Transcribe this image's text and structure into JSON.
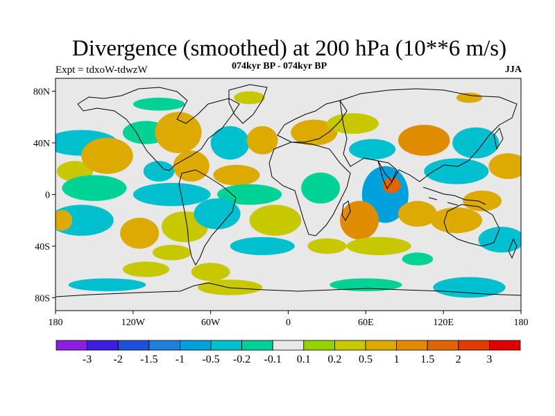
{
  "title": "Divergence (smoothed) at 200 hPa (10**6 m/s)",
  "experiment": "Expt = tdxoW-tdwzW",
  "period": "074kyr BP - 074kyr BP",
  "season": "JJA",
  "map": {
    "projection": "cylindrical-equidistant",
    "lon_range": [
      -180,
      180
    ],
    "lat_range": [
      -90,
      90
    ],
    "background_color": "#e8e8e8",
    "lat_ticks": [
      {
        "value": 80,
        "label": "80N"
      },
      {
        "value": 40,
        "label": "40N"
      },
      {
        "value": 0,
        "label": "0"
      },
      {
        "value": -40,
        "label": "40S"
      },
      {
        "value": -80,
        "label": "80S"
      }
    ],
    "lon_ticks": [
      {
        "value": -180,
        "label": "180"
      },
      {
        "value": -120,
        "label": "120W"
      },
      {
        "value": -60,
        "label": "60W"
      },
      {
        "value": 0,
        "label": "0"
      },
      {
        "value": 60,
        "label": "60E"
      },
      {
        "value": 120,
        "label": "120E"
      },
      {
        "value": 180,
        "label": "180"
      }
    ],
    "blobs": [
      {
        "lon": -160,
        "lat": 40,
        "rx": 28,
        "ry": 10,
        "value": -0.5
      },
      {
        "lon": -165,
        "lat": 18,
        "rx": 14,
        "ry": 8,
        "value": 0.2
      },
      {
        "lon": -140,
        "lat": 30,
        "rx": 20,
        "ry": 14,
        "value": 0.5
      },
      {
        "lon": -150,
        "lat": 5,
        "rx": 25,
        "ry": 10,
        "value": -0.2
      },
      {
        "lon": -110,
        "lat": 48,
        "rx": 18,
        "ry": 9,
        "value": -0.2
      },
      {
        "lon": -85,
        "lat": 48,
        "rx": 18,
        "ry": 16,
        "value": 0.5
      },
      {
        "lon": -75,
        "lat": 22,
        "rx": 14,
        "ry": 12,
        "value": 0.5
      },
      {
        "lon": -100,
        "lat": 18,
        "rx": 12,
        "ry": 8,
        "value": -0.5
      },
      {
        "lon": -90,
        "lat": 0,
        "rx": 30,
        "ry": 9,
        "value": -0.5
      },
      {
        "lon": -45,
        "lat": 40,
        "rx": 15,
        "ry": 13,
        "value": -0.5
      },
      {
        "lon": -20,
        "lat": 42,
        "rx": 12,
        "ry": 11,
        "value": 0.5
      },
      {
        "lon": -40,
        "lat": 15,
        "rx": 18,
        "ry": 8,
        "value": 0.5
      },
      {
        "lon": -30,
        "lat": 0,
        "rx": 25,
        "ry": 8,
        "value": -0.2
      },
      {
        "lon": -160,
        "lat": -20,
        "rx": 25,
        "ry": 12,
        "value": -0.5
      },
      {
        "lon": -175,
        "lat": -20,
        "rx": 8,
        "ry": 8,
        "value": 0.5
      },
      {
        "lon": -115,
        "lat": -30,
        "rx": 15,
        "ry": 12,
        "value": 0.5
      },
      {
        "lon": -80,
        "lat": -25,
        "rx": 18,
        "ry": 12,
        "value": 0.2
      },
      {
        "lon": -90,
        "lat": -45,
        "rx": 15,
        "ry": 6,
        "value": 0.2
      },
      {
        "lon": -55,
        "lat": -15,
        "rx": 18,
        "ry": 12,
        "value": -0.5
      },
      {
        "lon": -10,
        "lat": -20,
        "rx": 20,
        "ry": 12,
        "value": 0.2
      },
      {
        "lon": -20,
        "lat": -40,
        "rx": 25,
        "ry": 7,
        "value": -0.5
      },
      {
        "lon": -60,
        "lat": -60,
        "rx": 15,
        "ry": 7,
        "value": 0.2
      },
      {
        "lon": -110,
        "lat": -58,
        "rx": 18,
        "ry": 6,
        "value": 0.2
      },
      {
        "lon": 20,
        "lat": 48,
        "rx": 18,
        "ry": 10,
        "value": 0.5
      },
      {
        "lon": 50,
        "lat": 55,
        "rx": 20,
        "ry": 8,
        "value": 0.2
      },
      {
        "lon": 65,
        "lat": 35,
        "rx": 18,
        "ry": 8,
        "value": -0.5
      },
      {
        "lon": 105,
        "lat": 42,
        "rx": 20,
        "ry": 12,
        "value": 1
      },
      {
        "lon": 145,
        "lat": 40,
        "rx": 18,
        "ry": 12,
        "value": -0.5
      },
      {
        "lon": 170,
        "lat": 22,
        "rx": 15,
        "ry": 10,
        "value": 0.5
      },
      {
        "lon": 130,
        "lat": 18,
        "rx": 25,
        "ry": 10,
        "value": -0.5
      },
      {
        "lon": 75,
        "lat": 0,
        "rx": 18,
        "ry": 22,
        "value": -1
      },
      {
        "lon": 80,
        "lat": 7,
        "rx": 7,
        "ry": 6,
        "value": 1.5
      },
      {
        "lon": 55,
        "lat": -20,
        "rx": 15,
        "ry": 15,
        "value": 1
      },
      {
        "lon": 100,
        "lat": -15,
        "rx": 15,
        "ry": 10,
        "value": 0.5
      },
      {
        "lon": 25,
        "lat": 5,
        "rx": 15,
        "ry": 12,
        "value": -0.2
      },
      {
        "lon": 30,
        "lat": -40,
        "rx": 15,
        "ry": 6,
        "value": 0.2
      },
      {
        "lon": 130,
        "lat": -20,
        "rx": 20,
        "ry": 10,
        "value": 0.5
      },
      {
        "lon": 165,
        "lat": -35,
        "rx": 18,
        "ry": 10,
        "value": -0.5
      },
      {
        "lon": 150,
        "lat": -5,
        "rx": 15,
        "ry": 8,
        "value": 0.5
      },
      {
        "lon": 70,
        "lat": -40,
        "rx": 25,
        "ry": 7,
        "value": 0.2
      },
      {
        "lon": 100,
        "lat": -50,
        "rx": 12,
        "ry": 5,
        "value": -0.2
      },
      {
        "lon": -140,
        "lat": -70,
        "rx": 30,
        "ry": 5,
        "value": -0.5
      },
      {
        "lon": -45,
        "lat": -72,
        "rx": 25,
        "ry": 6,
        "value": 0.2
      },
      {
        "lon": 60,
        "lat": -70,
        "rx": 28,
        "ry": 5,
        "value": -0.2
      },
      {
        "lon": 140,
        "lat": -72,
        "rx": 28,
        "ry": 8,
        "value": -0.5
      },
      {
        "lon": -100,
        "lat": 70,
        "rx": 20,
        "ry": 5,
        "value": -0.2
      },
      {
        "lon": -30,
        "lat": 75,
        "rx": 12,
        "ry": 5,
        "value": 0.2
      },
      {
        "lon": 140,
        "lat": 75,
        "rx": 10,
        "ry": 4,
        "value": 0.5
      }
    ]
  },
  "colorbar": {
    "colors": [
      "#8e1ede",
      "#3c1ee0",
      "#1e50dc",
      "#1e82dc",
      "#00a0dc",
      "#00c0d0",
      "#00d296",
      "#e8e8e8",
      "#96d200",
      "#c8c800",
      "#dcaa00",
      "#e08c00",
      "#e06400",
      "#e03c00",
      "#e00000"
    ],
    "labels": [
      "-3",
      "-2",
      "-1.5",
      "-1",
      "-0.5",
      "-0.2",
      "-0.1",
      "0.1",
      "0.2",
      "0.5",
      "1",
      "1.5",
      "2",
      "3"
    ],
    "thresholds": [
      -3,
      -2,
      -1.5,
      -1,
      -0.5,
      -0.2,
      -0.1,
      0.1,
      0.2,
      0.5,
      1,
      1.5,
      2,
      3
    ]
  }
}
